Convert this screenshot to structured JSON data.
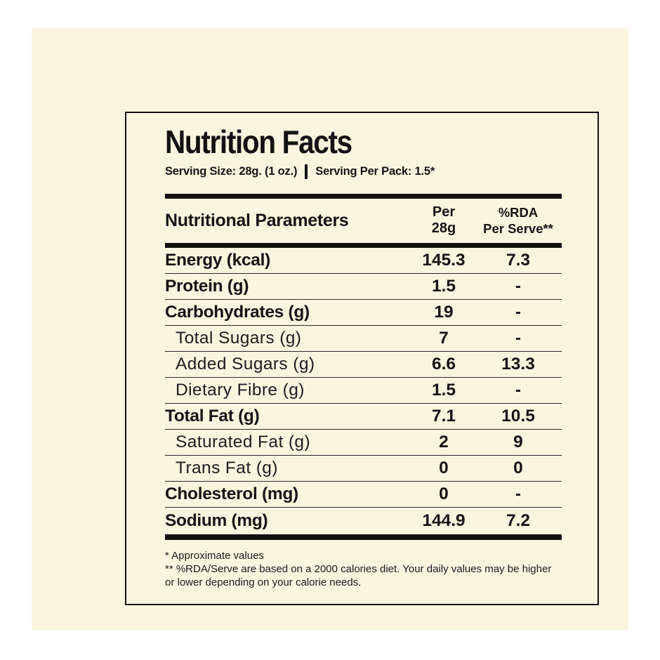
{
  "colors": {
    "page_background": "#ffffff",
    "panel_background": "#f9f6df",
    "ink": "#141414"
  },
  "label": {
    "title": "Nutrition Facts",
    "serving_size": "Serving Size: 28g. (1 oz.)",
    "serving_per_pack": "Serving Per Pack: 1.5*",
    "header": {
      "parameters": "Nutritional Parameters",
      "per_line1": "Per",
      "per_line2": "28g",
      "rda_line1": "%RDA",
      "rda_line2": "Per Serve**"
    },
    "rows": [
      {
        "name": "Energy (kcal)",
        "per": "145.3",
        "rda": "7.3",
        "style": "bold"
      },
      {
        "name": "Protein (g)",
        "per": "1.5",
        "rda": "-",
        "style": "bold"
      },
      {
        "name": "Carbohydrates (g)",
        "per": "19",
        "rda": "-",
        "style": "bold"
      },
      {
        "name": "Total Sugars (g)",
        "per": "7",
        "rda": "-",
        "style": "sub"
      },
      {
        "name": "Added Sugars (g)",
        "per": "6.6",
        "rda": "13.3",
        "style": "sub"
      },
      {
        "name": "Dietary Fibre (g)",
        "per": "1.5",
        "rda": "-",
        "style": "sub"
      },
      {
        "name": "Total Fat (g)",
        "per": "7.1",
        "rda": "10.5",
        "style": "bold"
      },
      {
        "name": "Saturated Fat (g)",
        "per": "2",
        "rda": "9",
        "style": "sub"
      },
      {
        "name": "Trans Fat (g)",
        "per": "0",
        "rda": "0",
        "style": "sub"
      },
      {
        "name": "Cholesterol (mg)",
        "per": "0",
        "rda": "-",
        "style": "bold"
      },
      {
        "name": "Sodium (mg)",
        "per": "144.9",
        "rda": "7.2",
        "style": "bold"
      }
    ],
    "footnotes": [
      "* Approximate values",
      "** %RDA/Serve are based on a 2000 calories diet. Your daily values may be higher or lower depending on your calorie needs."
    ]
  }
}
